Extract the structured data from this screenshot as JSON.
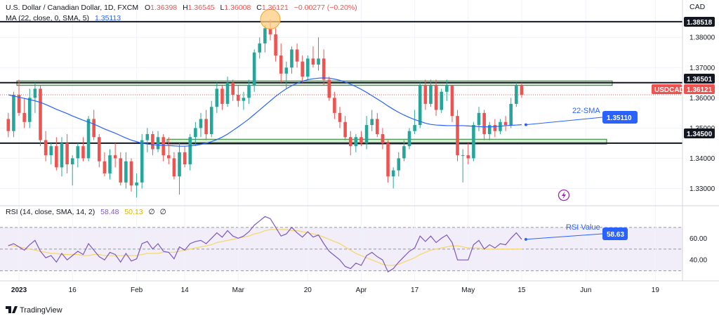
{
  "header": {
    "title": "U.S. Dollar / Canadian Dollar, 1D, FXCM",
    "ohlc": {
      "o_label": "O",
      "o": "1.36398",
      "h_label": "H",
      "h": "1.36545",
      "l_label": "L",
      "l": "1.36008",
      "c_label": "C",
      "c": "1.36121",
      "change": "−0.00277 (−0.20%)"
    },
    "ma_label": "MA (22, close, 0, SMA, 5)",
    "ma_value": "1.35113",
    "currency": "CAD"
  },
  "rsi_header": {
    "label": "RSI (14, close, SMA, 14, 2)",
    "rsi_value": "58.48",
    "ma_value": "50.13",
    "extra1": "∅",
    "extra2": "∅"
  },
  "annotations": {
    "sma_label": "22-SMA",
    "rsi_label": "RSI Value"
  },
  "price_badges": {
    "resistance_top": "1.38518",
    "resistance": "1.36501",
    "symbol": "USDCAD",
    "last": "1.36121",
    "sma": "1.35110",
    "support": "1.34500",
    "rsi": "58.63"
  },
  "branding": {
    "logo_text": "TradingView"
  },
  "colors": {
    "up": "#26a69a",
    "down": "#ef5350",
    "sma": "#2962ff",
    "rsi": "#7e57c2",
    "rsi_ma": "#f5d76e",
    "zone_fill": "#c8e6c9",
    "zone_stroke": "#2e7d32",
    "highlight": "#ffb74d"
  },
  "chart_data": [
    {
      "type": "candlestick",
      "series_name": "USDCAD",
      "ylim": [
        1.325,
        1.3905
      ],
      "y_ticks": [
        1.33,
        1.34,
        1.35,
        1.36,
        1.37,
        1.38
      ],
      "y_tick_labels": [
        "1.33000",
        "1.34000",
        "1.35000",
        "1.36000",
        "1.37000",
        "1.38000"
      ],
      "x_tick_labels": [
        {
          "label": "2023",
          "bold": true,
          "at": 2
        },
        {
          "label": "16",
          "at": 12
        },
        {
          "label": "Feb",
          "at": 24
        },
        {
          "label": "14",
          "at": 33
        },
        {
          "label": "Mar",
          "at": 43
        },
        {
          "label": "20",
          "at": 56
        },
        {
          "label": "Apr",
          "at": 66
        },
        {
          "label": "17",
          "at": 76
        },
        {
          "label": "May",
          "at": 86
        },
        {
          "label": "15",
          "at": 96
        },
        {
          "label": "Jun",
          "at": 108
        },
        {
          "label": "19",
          "at": 121
        }
      ],
      "horizontal_lines": [
        1.38518,
        1.36501,
        1.345
      ],
      "zones": [
        {
          "from": 1.3641,
          "to": 1.3656
        },
        {
          "from": 1.3447,
          "to": 1.3463
        }
      ],
      "candles": [
        [
          1.353,
          1.355,
          1.347,
          1.349
        ],
        [
          1.349,
          1.362,
          1.347,
          1.361
        ],
        [
          1.361,
          1.366,
          1.354,
          1.355
        ],
        [
          1.355,
          1.36,
          1.35,
          1.352
        ],
        [
          1.352,
          1.363,
          1.35,
          1.36
        ],
        [
          1.36,
          1.365,
          1.355,
          1.363
        ],
        [
          1.363,
          1.364,
          1.344,
          1.346
        ],
        [
          1.346,
          1.349,
          1.339,
          1.341
        ],
        [
          1.341,
          1.345,
          1.338,
          1.344
        ],
        [
          1.344,
          1.347,
          1.336,
          1.337
        ],
        [
          1.337,
          1.347,
          1.334,
          1.345
        ],
        [
          1.345,
          1.348,
          1.335,
          1.338
        ],
        [
          1.338,
          1.341,
          1.331,
          1.34
        ],
        [
          1.34,
          1.345,
          1.337,
          1.344
        ],
        [
          1.344,
          1.347,
          1.339,
          1.34
        ],
        [
          1.34,
          1.354,
          1.339,
          1.353
        ],
        [
          1.353,
          1.356,
          1.346,
          1.347
        ],
        [
          1.347,
          1.348,
          1.337,
          1.339
        ],
        [
          1.339,
          1.342,
          1.334,
          1.335
        ],
        [
          1.335,
          1.343,
          1.333,
          1.341
        ],
        [
          1.341,
          1.345,
          1.337,
          1.34
        ],
        [
          1.34,
          1.342,
          1.331,
          1.332
        ],
        [
          1.332,
          1.342,
          1.33,
          1.339
        ],
        [
          1.339,
          1.34,
          1.329,
          1.331
        ],
        [
          1.331,
          1.335,
          1.327,
          1.332
        ],
        [
          1.332,
          1.348,
          1.33,
          1.346
        ],
        [
          1.346,
          1.35,
          1.342,
          1.348
        ],
        [
          1.348,
          1.349,
          1.341,
          1.343
        ],
        [
          1.343,
          1.349,
          1.342,
          1.347
        ],
        [
          1.347,
          1.348,
          1.339,
          1.341
        ],
        [
          1.341,
          1.347,
          1.338,
          1.34
        ],
        [
          1.34,
          1.342,
          1.333,
          1.334
        ],
        [
          1.334,
          1.345,
          1.328,
          1.342
        ],
        [
          1.342,
          1.344,
          1.337,
          1.338
        ],
        [
          1.338,
          1.348,
          1.336,
          1.347
        ],
        [
          1.347,
          1.352,
          1.344,
          1.35
        ],
        [
          1.35,
          1.355,
          1.347,
          1.353
        ],
        [
          1.353,
          1.356,
          1.346,
          1.348
        ],
        [
          1.348,
          1.359,
          1.347,
          1.357
        ],
        [
          1.357,
          1.365,
          1.355,
          1.363
        ],
        [
          1.363,
          1.364,
          1.356,
          1.358
        ],
        [
          1.358,
          1.367,
          1.357,
          1.365
        ],
        [
          1.365,
          1.366,
          1.359,
          1.361
        ],
        [
          1.361,
          1.364,
          1.357,
          1.359
        ],
        [
          1.359,
          1.362,
          1.356,
          1.36
        ],
        [
          1.36,
          1.366,
          1.358,
          1.364
        ],
        [
          1.364,
          1.376,
          1.362,
          1.375
        ],
        [
          1.375,
          1.38,
          1.373,
          1.378
        ],
        [
          1.378,
          1.384,
          1.375,
          1.383
        ],
        [
          1.383,
          1.386,
          1.379,
          1.381
        ],
        [
          1.381,
          1.383,
          1.372,
          1.374
        ],
        [
          1.374,
          1.378,
          1.365,
          1.368
        ],
        [
          1.368,
          1.372,
          1.363,
          1.37
        ],
        [
          1.37,
          1.377,
          1.368,
          1.376
        ],
        [
          1.376,
          1.378,
          1.37,
          1.372
        ],
        [
          1.372,
          1.374,
          1.365,
          1.367
        ],
        [
          1.367,
          1.374,
          1.366,
          1.373
        ],
        [
          1.373,
          1.377,
          1.37,
          1.371
        ],
        [
          1.371,
          1.38,
          1.369,
          1.373
        ],
        [
          1.373,
          1.376,
          1.364,
          1.366
        ],
        [
          1.366,
          1.367,
          1.359,
          1.36
        ],
        [
          1.36,
          1.362,
          1.353,
          1.355
        ],
        [
          1.355,
          1.357,
          1.35,
          1.352
        ],
        [
          1.352,
          1.354,
          1.346,
          1.347
        ],
        [
          1.347,
          1.349,
          1.341,
          1.344
        ],
        [
          1.344,
          1.348,
          1.342,
          1.347
        ],
        [
          1.347,
          1.349,
          1.344,
          1.345
        ],
        [
          1.345,
          1.354,
          1.343,
          1.351
        ],
        [
          1.351,
          1.356,
          1.349,
          1.353
        ],
        [
          1.353,
          1.355,
          1.347,
          1.348
        ],
        [
          1.348,
          1.35,
          1.343,
          1.345
        ],
        [
          1.345,
          1.346,
          1.332,
          1.334
        ],
        [
          1.334,
          1.337,
          1.33,
          1.336
        ],
        [
          1.336,
          1.342,
          1.334,
          1.34
        ],
        [
          1.34,
          1.346,
          1.339,
          1.344
        ],
        [
          1.344,
          1.35,
          1.343,
          1.349
        ],
        [
          1.349,
          1.356,
          1.348,
          1.351
        ],
        [
          1.351,
          1.365,
          1.35,
          1.364
        ],
        [
          1.364,
          1.366,
          1.356,
          1.358
        ],
        [
          1.358,
          1.366,
          1.357,
          1.364
        ],
        [
          1.364,
          1.366,
          1.354,
          1.356
        ],
        [
          1.356,
          1.363,
          1.355,
          1.362
        ],
        [
          1.362,
          1.366,
          1.359,
          1.364
        ],
        [
          1.364,
          1.364,
          1.352,
          1.354
        ],
        [
          1.354,
          1.356,
          1.339,
          1.341
        ],
        [
          1.341,
          1.343,
          1.332,
          1.341
        ],
        [
          1.341,
          1.345,
          1.338,
          1.34
        ],
        [
          1.34,
          1.352,
          1.339,
          1.351
        ],
        [
          1.351,
          1.357,
          1.349,
          1.355
        ],
        [
          1.355,
          1.356,
          1.346,
          1.348
        ],
        [
          1.348,
          1.352,
          1.346,
          1.351
        ],
        [
          1.351,
          1.353,
          1.347,
          1.349
        ],
        [
          1.349,
          1.353,
          1.348,
          1.352
        ],
        [
          1.352,
          1.354,
          1.349,
          1.351
        ],
        [
          1.351,
          1.36,
          1.35,
          1.358
        ],
        [
          1.358,
          1.365,
          1.357,
          1.364
        ],
        [
          1.364,
          1.365,
          1.36,
          1.361
        ]
      ],
      "sma_line": [
        1.361,
        1.3606,
        1.3602,
        1.3598,
        1.3594,
        1.359,
        1.3585,
        1.3578,
        1.357,
        1.3562,
        1.3555,
        1.3548,
        1.354,
        1.3533,
        1.3526,
        1.352,
        1.3513,
        1.3505,
        1.3497,
        1.349,
        1.3483,
        1.3475,
        1.3467,
        1.346,
        1.3455,
        1.345,
        1.3447,
        1.3445,
        1.3444,
        1.3443,
        1.3442,
        1.3441,
        1.344,
        1.344,
        1.3441,
        1.3443,
        1.3446,
        1.345,
        1.3455,
        1.3462,
        1.347,
        1.348,
        1.3492,
        1.3504,
        1.3517,
        1.353,
        1.3545,
        1.356,
        1.3575,
        1.359,
        1.3605,
        1.3618,
        1.363,
        1.364,
        1.3648,
        1.3655,
        1.366,
        1.3663,
        1.3665,
        1.3666,
        1.3665,
        1.3662,
        1.3658,
        1.3652,
        1.3645,
        1.3637,
        1.3628,
        1.3618,
        1.3607,
        1.3596,
        1.3585,
        1.3573,
        1.3562,
        1.3552,
        1.3543,
        1.3535,
        1.3528,
        1.3522,
        1.3516,
        1.3512,
        1.351,
        1.3509,
        1.3508,
        1.3508,
        1.3508,
        1.3508,
        1.3507,
        1.3506,
        1.3505,
        1.3504,
        1.3504,
        1.3505,
        1.3506,
        1.3508,
        1.3509,
        1.351,
        1.3511
      ],
      "sma_annotation_value": 1.3511
    },
    {
      "type": "line",
      "series_name": "RSI",
      "ylim": [
        22,
        88
      ],
      "y_ticks": [
        40,
        60
      ],
      "y_tick_labels": [
        "40.00",
        "60.00"
      ],
      "band": [
        30,
        70
      ],
      "midline": 50,
      "rsi_line": [
        53,
        55,
        52,
        49,
        54,
        58,
        48,
        42,
        44,
        38,
        46,
        40,
        44,
        48,
        45,
        55,
        49,
        43,
        40,
        47,
        45,
        38,
        46,
        39,
        41,
        55,
        57,
        50,
        55,
        48,
        47,
        41,
        52,
        49,
        55,
        57,
        58,
        55,
        60,
        65,
        61,
        67,
        62,
        60,
        62,
        66,
        72,
        76,
        80,
        78,
        70,
        62,
        64,
        70,
        65,
        61,
        66,
        61,
        63,
        55,
        48,
        44,
        40,
        34,
        32,
        37,
        35,
        44,
        47,
        43,
        40,
        29,
        32,
        38,
        43,
        48,
        51,
        62,
        57,
        62,
        56,
        60,
        63,
        56,
        40,
        40,
        40,
        54,
        58,
        50,
        54,
        51,
        55,
        54,
        60,
        65,
        59
      ],
      "rsi_ma_line": [
        54,
        53,
        52,
        51,
        50,
        49,
        48,
        47,
        46,
        46,
        45,
        45,
        45,
        45,
        44,
        44,
        45,
        45,
        44,
        44,
        44,
        44,
        44,
        44,
        44,
        45,
        46,
        46,
        46,
        47,
        47,
        47,
        48,
        49,
        50,
        51,
        52,
        53,
        54,
        56,
        57,
        58,
        59,
        60,
        61,
        62,
        64,
        65,
        67,
        68,
        68,
        68,
        68,
        67,
        67,
        66,
        65,
        64,
        63,
        61,
        59,
        57,
        55,
        52,
        49,
        46,
        44,
        42,
        40,
        38,
        36,
        35,
        35,
        36,
        38,
        40,
        42,
        45,
        47,
        49,
        50,
        51,
        52,
        53,
        53,
        52,
        51,
        51,
        51,
        50,
        50,
        50,
        50,
        50,
        50,
        50,
        50
      ]
    }
  ]
}
